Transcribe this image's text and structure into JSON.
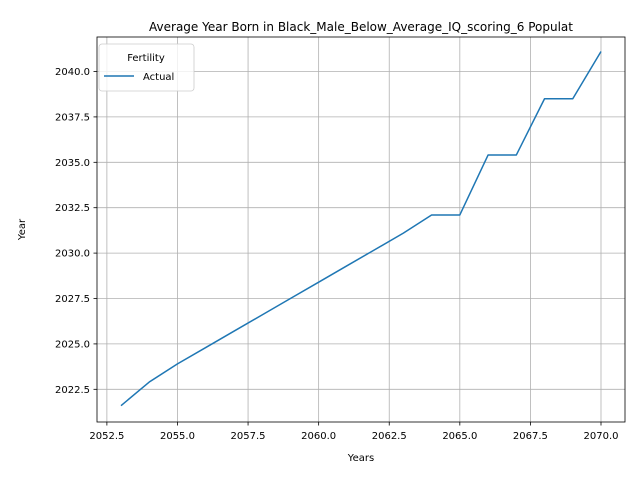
{
  "chart_data": {
    "type": "line",
    "title": "Average Year Born in Black_Male_Below_Average_IQ_scoring_6 Populat",
    "xlabel": "Years",
    "ylabel": "Year",
    "xlim": [
      2052.15,
      2070.85
    ],
    "ylim": [
      2020.7,
      2041.9
    ],
    "xticks": [
      2052.5,
      2055.0,
      2057.5,
      2060.0,
      2062.5,
      2065.0,
      2067.5,
      2070.0
    ],
    "xtick_labels": [
      "2052.5",
      "2055.0",
      "2057.5",
      "2060.0",
      "2062.5",
      "2065.0",
      "2067.5",
      "2070.0"
    ],
    "yticks": [
      2022.5,
      2025.0,
      2027.5,
      2030.0,
      2032.5,
      2035.0,
      2037.5,
      2040.0
    ],
    "ytick_labels": [
      "2022.5",
      "2025.0",
      "2027.5",
      "2030.0",
      "2032.5",
      "2035.0",
      "2037.5",
      "2040.0"
    ],
    "grid": true,
    "legend": {
      "title": "Fertility",
      "placement": "upper-left"
    },
    "series": [
      {
        "name": "Actual",
        "color": "#1f77b4",
        "x": [
          2053,
          2054,
          2055,
          2056,
          2057,
          2058,
          2059,
          2060,
          2061,
          2062,
          2063,
          2064,
          2065,
          2066,
          2067,
          2068,
          2069,
          2070
        ],
        "y": [
          2021.6,
          2022.9,
          2023.9,
          2024.8,
          2025.7,
          2026.6,
          2027.5,
          2028.4,
          2029.3,
          2030.2,
          2031.1,
          2032.1,
          2032.1,
          2035.4,
          2035.4,
          2038.5,
          2038.5,
          2041.1
        ]
      }
    ]
  }
}
